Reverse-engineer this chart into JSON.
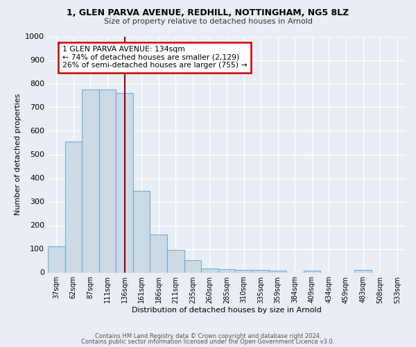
{
  "title1": "1, GLEN PARVA AVENUE, REDHILL, NOTTINGHAM, NG5 8LZ",
  "title2": "Size of property relative to detached houses in Arnold",
  "xlabel": "Distribution of detached houses by size in Arnold",
  "ylabel": "Number of detached properties",
  "bar_color": "#cdd9e5",
  "bar_edge_color": "#6aaed6",
  "categories": [
    "37sqm",
    "62sqm",
    "87sqm",
    "111sqm",
    "136sqm",
    "161sqm",
    "186sqm",
    "211sqm",
    "235sqm",
    "260sqm",
    "285sqm",
    "310sqm",
    "335sqm",
    "359sqm",
    "384sqm",
    "409sqm",
    "434sqm",
    "459sqm",
    "483sqm",
    "508sqm",
    "533sqm"
  ],
  "values": [
    110,
    555,
    775,
    775,
    760,
    345,
    160,
    95,
    52,
    15,
    12,
    10,
    10,
    8,
    0,
    8,
    0,
    0,
    10,
    0,
    0
  ],
  "vline_x_index": 4,
  "vline_color": "#990000",
  "annotation_text": "1 GLEN PARVA AVENUE: 134sqm\n← 74% of detached houses are smaller (2,129)\n26% of semi-detached houses are larger (755) →",
  "box_facecolor": "#ffffff",
  "box_edgecolor": "#cc0000",
  "footer1": "Contains HM Land Registry data © Crown copyright and database right 2024.",
  "footer2": "Contains public sector information licensed under the Open Government Licence v3.0.",
  "ylim": [
    0,
    1000
  ],
  "yticks": [
    0,
    100,
    200,
    300,
    400,
    500,
    600,
    700,
    800,
    900,
    1000
  ],
  "background_color": "#e8eef4",
  "grid_color": "#ffffff",
  "title1_fontsize": 9,
  "title2_fontsize": 8
}
